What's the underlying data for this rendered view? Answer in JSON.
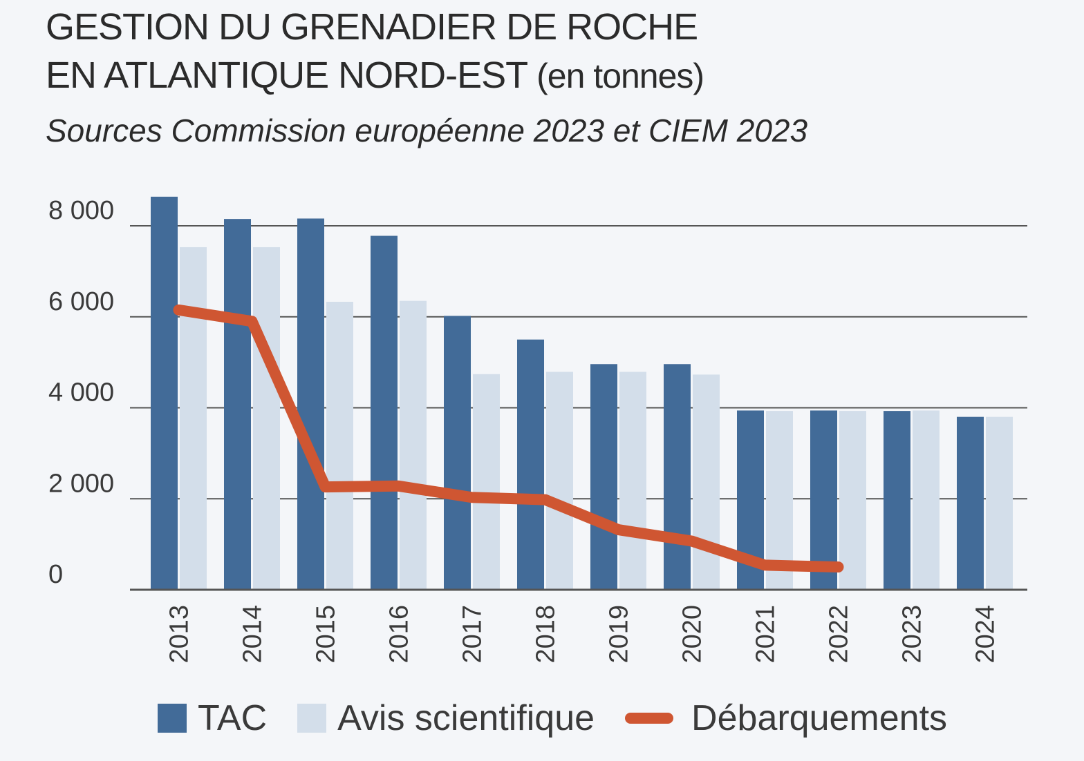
{
  "title": {
    "line1": "GESTION DU GRENADIER DE ROCHE",
    "line2": "EN ATLANTIQUE NORD-EST",
    "unit": "(en tonnes)"
  },
  "subtitle": "Sources Commission européenne 2023 et CIEM 2023",
  "colors": {
    "tac": "#426b98",
    "avis": "#d3deea",
    "debarquements": "#cf5632",
    "grid": "#555555",
    "background": "#f4f6f9"
  },
  "chart_data": {
    "type": "bar",
    "categories": [
      "2013",
      "2014",
      "2015",
      "2016",
      "2017",
      "2018",
      "2019",
      "2020",
      "2021",
      "2022",
      "2023",
      "2024"
    ],
    "series": [
      {
        "name": "TAC",
        "type": "bar",
        "values": [
          8640,
          8150,
          8160,
          7780,
          6020,
          5500,
          4960,
          4960,
          3940,
          3940,
          3930,
          3800
        ]
      },
      {
        "name": "Avis scientifique",
        "type": "bar",
        "values": [
          7530,
          7530,
          6330,
          6350,
          4740,
          4790,
          4790,
          4730,
          3930,
          3930,
          3940,
          3800
        ]
      },
      {
        "name": "Débarquements",
        "type": "line",
        "values": [
          6150,
          5900,
          2260,
          2280,
          2030,
          1980,
          1320,
          1070,
          540,
          500,
          null,
          null
        ]
      }
    ],
    "yticks": [
      "0",
      "2 000",
      "4 000",
      "6 000",
      "8 000"
    ],
    "ylim": [
      0,
      8000
    ],
    "grid": true,
    "legend": "bottom"
  },
  "legend": {
    "tac": "TAC",
    "avis": "Avis scientifique",
    "debarquements": "Débarquements"
  }
}
